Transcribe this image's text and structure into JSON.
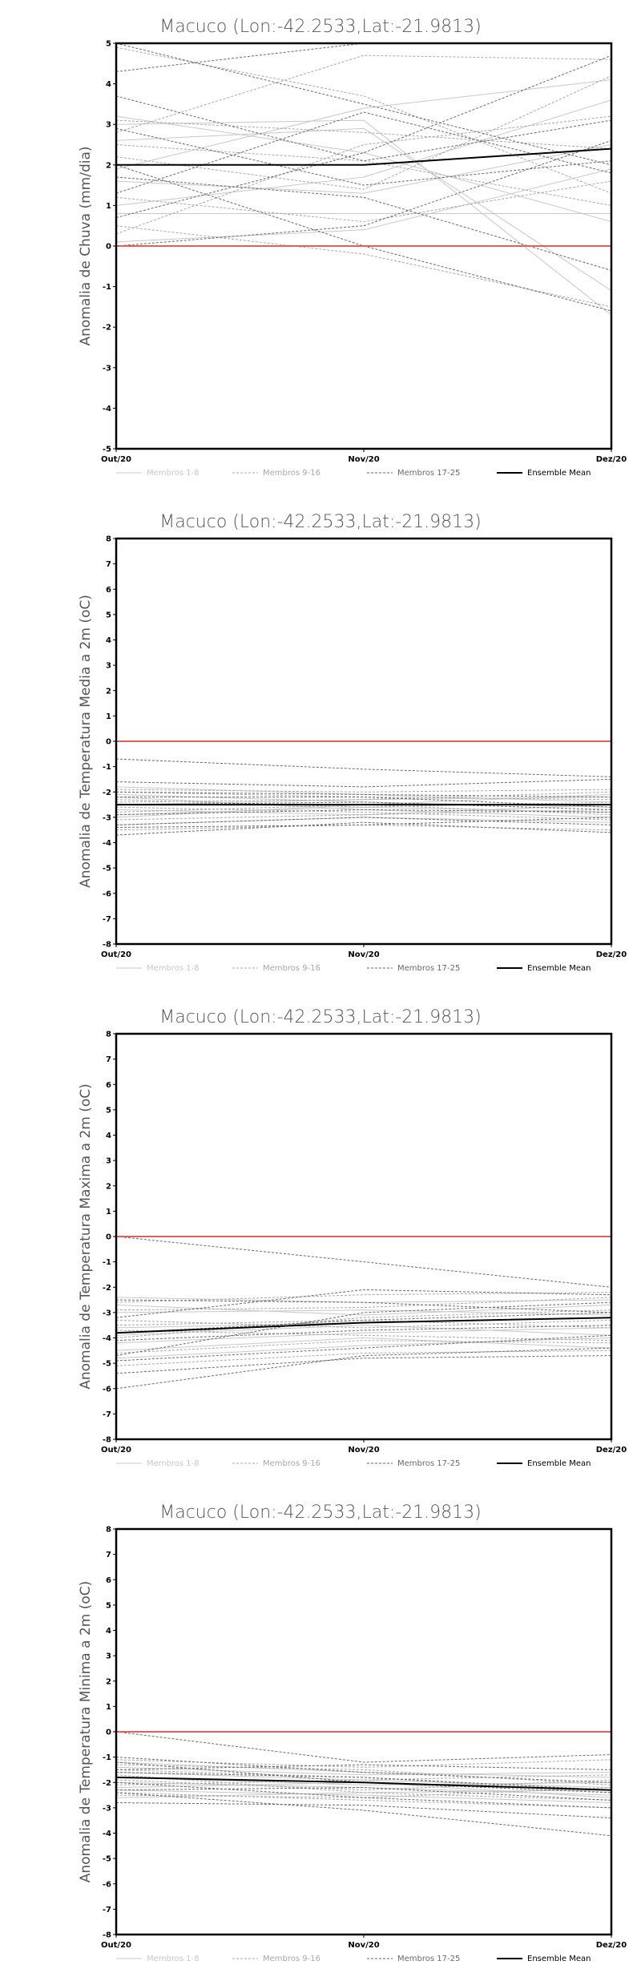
{
  "chart_data": [
    {
      "type": "line",
      "title": "Macuco (Lon:-42.2533,Lat:-21.9813)",
      "ylabel": "Anomalia de Chuva (mm/dia)",
      "xlabel": "",
      "categories": [
        "Out/20",
        "Nov/20",
        "Dez/20"
      ],
      "ylim": [
        -5,
        5
      ],
      "yticks": [
        -5,
        -4,
        -3,
        -2,
        -1,
        0,
        1,
        2,
        3,
        4,
        5
      ],
      "grid": false,
      "reference_line": 0,
      "legend": [
        "Membros 1-8",
        "Membros 9-16",
        "Membros 17-25",
        "Ensemble Mean"
      ],
      "legend_placement": "bottom",
      "series": [
        {
          "group": 0,
          "values": [
            3.2,
            2.3,
            0.6
          ]
        },
        {
          "group": 0,
          "values": [
            1.9,
            3.4,
            4.1
          ]
        },
        {
          "group": 0,
          "values": [
            0.1,
            0.4,
            1.9
          ]
        },
        {
          "group": 0,
          "values": [
            2.6,
            2.9,
            -1.1
          ]
        },
        {
          "group": 0,
          "values": [
            1.0,
            1.7,
            3.6
          ]
        },
        {
          "group": 0,
          "values": [
            3.0,
            3.1,
            -1.7
          ]
        },
        {
          "group": 0,
          "values": [
            0.8,
            0.8,
            0.8
          ]
        },
        {
          "group": 0,
          "values": [
            1.6,
            1.3,
            2.5
          ]
        },
        {
          "group": 1,
          "values": [
            2.8,
            4.7,
            4.6
          ]
        },
        {
          "group": 1,
          "values": [
            1.2,
            0.6,
            1.6
          ]
        },
        {
          "group": 1,
          "values": [
            0.3,
            2.5,
            3.2
          ]
        },
        {
          "group": 1,
          "values": [
            3.1,
            2.8,
            2.4
          ]
        },
        {
          "group": 1,
          "values": [
            2.2,
            1.4,
            4.2
          ]
        },
        {
          "group": 1,
          "values": [
            4.9,
            3.7,
            1.3
          ]
        },
        {
          "group": 1,
          "values": [
            0.5,
            -0.2,
            -1.5
          ]
        },
        {
          "group": 1,
          "values": [
            2.5,
            2.1,
            1.0
          ]
        },
        {
          "group": 2,
          "values": [
            5.0,
            3.5,
            2.0
          ]
        },
        {
          "group": 2,
          "values": [
            3.7,
            2.1,
            3.1
          ]
        },
        {
          "group": 2,
          "values": [
            1.7,
            1.2,
            -0.6
          ]
        },
        {
          "group": 2,
          "values": [
            0.0,
            0.5,
            2.6
          ]
        },
        {
          "group": 2,
          "values": [
            2.9,
            1.5,
            2.1
          ]
        },
        {
          "group": 2,
          "values": [
            0.7,
            2.3,
            4.7
          ]
        },
        {
          "group": 2,
          "values": [
            4.3,
            5.0,
            5.0
          ]
        },
        {
          "group": 2,
          "values": [
            2.0,
            0.0,
            -1.6
          ]
        },
        {
          "group": 2,
          "values": [
            1.3,
            3.3,
            1.8
          ]
        },
        {
          "group": 3,
          "values": [
            2.0,
            2.0,
            2.4
          ]
        }
      ]
    },
    {
      "type": "line",
      "title": "Macuco (Lon:-42.2533,Lat:-21.9813)",
      "ylabel": "Anomalia de Temperatura Media a 2m (oC)",
      "xlabel": "",
      "categories": [
        "Out/20",
        "Nov/20",
        "Dez/20"
      ],
      "ylim": [
        -8,
        8
      ],
      "yticks": [
        -8,
        -7,
        -6,
        -5,
        -4,
        -3,
        -2,
        -1,
        0,
        1,
        2,
        3,
        4,
        5,
        6,
        7,
        8
      ],
      "grid": false,
      "reference_line": 0,
      "legend": [
        "Membros 1-8",
        "Membros 9-16",
        "Membros 17-25",
        "Ensemble Mean"
      ],
      "legend_placement": "bottom",
      "series": [
        {
          "group": 0,
          "values": [
            -2.1,
            -2.4,
            -2.6
          ]
        },
        {
          "group": 0,
          "values": [
            -2.5,
            -2.3,
            -2.2
          ]
        },
        {
          "group": 0,
          "values": [
            -1.8,
            -2.1,
            -2.4
          ]
        },
        {
          "group": 0,
          "values": [
            -2.9,
            -2.6,
            -2.8
          ]
        },
        {
          "group": 0,
          "values": [
            -3.3,
            -3.0,
            -3.2
          ]
        },
        {
          "group": 0,
          "values": [
            -2.2,
            -2.7,
            -3.0
          ]
        },
        {
          "group": 0,
          "values": [
            -2.7,
            -2.9,
            -2.5
          ]
        },
        {
          "group": 0,
          "values": [
            -3.0,
            -2.5,
            -2.1
          ]
        },
        {
          "group": 1,
          "values": [
            -2.0,
            -2.2,
            -2.3
          ]
        },
        {
          "group": 1,
          "values": [
            -2.6,
            -2.8,
            -3.1
          ]
        },
        {
          "group": 1,
          "values": [
            -3.1,
            -2.9,
            -2.7
          ]
        },
        {
          "group": 1,
          "values": [
            -2.4,
            -2.3,
            -2.0
          ]
        },
        {
          "group": 1,
          "values": [
            -3.5,
            -3.3,
            -3.5
          ]
        },
        {
          "group": 1,
          "values": [
            -1.9,
            -2.0,
            -1.9
          ]
        },
        {
          "group": 1,
          "values": [
            -2.8,
            -2.5,
            -2.9
          ]
        },
        {
          "group": 1,
          "values": [
            -2.3,
            -2.6,
            -2.4
          ]
        },
        {
          "group": 2,
          "values": [
            -0.7,
            -1.1,
            -1.4
          ]
        },
        {
          "group": 2,
          "values": [
            -3.7,
            -3.2,
            -3.6
          ]
        },
        {
          "group": 2,
          "values": [
            -1.6,
            -1.8,
            -1.5
          ]
        },
        {
          "group": 2,
          "values": [
            -3.3,
            -3.0,
            -3.3
          ]
        },
        {
          "group": 2,
          "values": [
            -2.2,
            -2.2,
            -2.6
          ]
        },
        {
          "group": 2,
          "values": [
            -2.9,
            -2.7,
            -2.8
          ]
        },
        {
          "group": 2,
          "values": [
            -2.5,
            -2.4,
            -2.7
          ]
        },
        {
          "group": 2,
          "values": [
            -3.4,
            -3.3,
            -3.0
          ]
        },
        {
          "group": 2,
          "values": [
            -2.0,
            -2.1,
            -2.2
          ]
        },
        {
          "group": 3,
          "values": [
            -2.5,
            -2.5,
            -2.5
          ]
        }
      ]
    },
    {
      "type": "line",
      "title": "Macuco (Lon:-42.2533,Lat:-21.9813)",
      "ylabel": "Anomalia de Temperatura Maxima a 2m (oC)",
      "xlabel": "",
      "categories": [
        "Out/20",
        "Nov/20",
        "Dez/20"
      ],
      "ylim": [
        -8,
        8
      ],
      "yticks": [
        -8,
        -7,
        -6,
        -5,
        -4,
        -3,
        -2,
        -1,
        0,
        1,
        2,
        3,
        4,
        5,
        6,
        7,
        8
      ],
      "grid": false,
      "reference_line": 0,
      "legend": [
        "Membros 1-8",
        "Membros 9-16",
        "Membros 17-25",
        "Ensemble Mean"
      ],
      "legend_placement": "bottom",
      "series": [
        {
          "group": 0,
          "values": [
            -2.4,
            -2.6,
            -2.5
          ]
        },
        {
          "group": 0,
          "values": [
            -3.0,
            -2.9,
            -3.1
          ]
        },
        {
          "group": 0,
          "values": [
            -3.6,
            -3.4,
            -3.2
          ]
        },
        {
          "group": 0,
          "values": [
            -4.2,
            -3.8,
            -3.6
          ]
        },
        {
          "group": 0,
          "values": [
            -4.8,
            -4.3,
            -4.0
          ]
        },
        {
          "group": 0,
          "values": [
            -2.7,
            -3.1,
            -2.7
          ]
        },
        {
          "group": 0,
          "values": [
            -3.9,
            -3.5,
            -3.9
          ]
        },
        {
          "group": 0,
          "values": [
            -4.5,
            -4.0,
            -4.4
          ]
        },
        {
          "group": 1,
          "values": [
            -2.6,
            -2.3,
            -2.2
          ]
        },
        {
          "group": 1,
          "values": [
            -3.3,
            -3.6,
            -3.3
          ]
        },
        {
          "group": 1,
          "values": [
            -4.0,
            -3.2,
            -2.9
          ]
        },
        {
          "group": 1,
          "values": [
            -4.6,
            -4.1,
            -4.2
          ]
        },
        {
          "group": 1,
          "values": [
            -3.5,
            -3.3,
            -3.6
          ]
        },
        {
          "group": 1,
          "values": [
            -5.1,
            -4.6,
            -4.5
          ]
        },
        {
          "group": 1,
          "values": [
            -2.9,
            -2.8,
            -2.4
          ]
        },
        {
          "group": 1,
          "values": [
            -3.7,
            -3.9,
            -4.1
          ]
        },
        {
          "group": 2,
          "values": [
            0.0,
            -1.0,
            -2.0
          ]
        },
        {
          "group": 2,
          "values": [
            -6.0,
            -4.7,
            -4.4
          ]
        },
        {
          "group": 2,
          "values": [
            -3.2,
            -2.1,
            -2.3
          ]
        },
        {
          "group": 2,
          "values": [
            -4.7,
            -3.0,
            -2.6
          ]
        },
        {
          "group": 2,
          "values": [
            -5.4,
            -4.8,
            -4.7
          ]
        },
        {
          "group": 2,
          "values": [
            -2.5,
            -2.6,
            -3.0
          ]
        },
        {
          "group": 2,
          "values": [
            -4.9,
            -4.4,
            -3.9
          ]
        },
        {
          "group": 2,
          "values": [
            -3.8,
            -3.3,
            -3.0
          ]
        },
        {
          "group": 2,
          "values": [
            -4.1,
            -3.7,
            -3.5
          ]
        },
        {
          "group": 3,
          "values": [
            -3.8,
            -3.4,
            -3.2
          ]
        }
      ]
    },
    {
      "type": "line",
      "title": "Macuco (Lon:-42.2533,Lat:-21.9813)",
      "ylabel": "Anomalia de Temperatura Minima a 2m (oC)",
      "xlabel": "",
      "categories": [
        "Out/20",
        "Nov/20",
        "Dez/20"
      ],
      "ylim": [
        -8,
        8
      ],
      "yticks": [
        -8,
        -7,
        -6,
        -5,
        -4,
        -3,
        -2,
        -1,
        0,
        1,
        2,
        3,
        4,
        5,
        6,
        7,
        8
      ],
      "grid": false,
      "reference_line": 0,
      "legend": [
        "Membros 1-8",
        "Membros 9-16",
        "Membros 17-25",
        "Ensemble Mean"
      ],
      "legend_placement": "bottom",
      "series": [
        {
          "group": 0,
          "values": [
            -1.2,
            -1.6,
            -1.8
          ]
        },
        {
          "group": 0,
          "values": [
            -1.6,
            -1.9,
            -2.2
          ]
        },
        {
          "group": 0,
          "values": [
            -2.0,
            -2.2,
            -2.5
          ]
        },
        {
          "group": 0,
          "values": [
            -2.3,
            -2.5,
            -2.8
          ]
        },
        {
          "group": 0,
          "values": [
            -1.4,
            -1.7,
            -1.6
          ]
        },
        {
          "group": 0,
          "values": [
            -2.6,
            -2.4,
            -2.3
          ]
        },
        {
          "group": 0,
          "values": [
            -1.8,
            -2.1,
            -2.0
          ]
        },
        {
          "group": 0,
          "values": [
            -2.2,
            -2.0,
            -2.6
          ]
        },
        {
          "group": 1,
          "values": [
            -1.1,
            -1.4,
            -1.1
          ]
        },
        {
          "group": 1,
          "values": [
            -1.5,
            -1.8,
            -2.4
          ]
        },
        {
          "group": 1,
          "values": [
            -1.9,
            -2.3,
            -1.9
          ]
        },
        {
          "group": 1,
          "values": [
            -2.4,
            -2.7,
            -3.0
          ]
        },
        {
          "group": 1,
          "values": [
            -1.3,
            -1.5,
            -2.1
          ]
        },
        {
          "group": 1,
          "values": [
            -2.1,
            -1.9,
            -1.7
          ]
        },
        {
          "group": 1,
          "values": [
            -1.7,
            -2.4,
            -2.7
          ]
        },
        {
          "group": 1,
          "values": [
            -2.5,
            -2.6,
            -2.2
          ]
        },
        {
          "group": 2,
          "values": [
            0.0,
            -1.2,
            -0.9
          ]
        },
        {
          "group": 2,
          "values": [
            -2.4,
            -3.1,
            -4.1
          ]
        },
        {
          "group": 2,
          "values": [
            -1.0,
            -1.6,
            -2.0
          ]
        },
        {
          "group": 2,
          "values": [
            -2.8,
            -2.9,
            -3.4
          ]
        },
        {
          "group": 2,
          "values": [
            -1.5,
            -1.3,
            -1.5
          ]
        },
        {
          "group": 2,
          "values": [
            -2.0,
            -2.6,
            -3.0
          ]
        },
        {
          "group": 2,
          "values": [
            -1.2,
            -2.0,
            -2.4
          ]
        },
        {
          "group": 2,
          "values": [
            -2.3,
            -2.2,
            -2.7
          ]
        },
        {
          "group": 2,
          "values": [
            -1.6,
            -1.8,
            -2.3
          ]
        },
        {
          "group": 3,
          "values": [
            -1.8,
            -2.0,
            -2.3
          ]
        }
      ]
    }
  ],
  "styles": {
    "axis_color": "#000000",
    "reference_color": "#e06060",
    "groups": [
      {
        "color": "#c8c8c8",
        "dash": "",
        "width": 1
      },
      {
        "color": "#a8a8a8",
        "dash": "3,2",
        "width": 1
      },
      {
        "color": "#6a6a6a",
        "dash": "3,2",
        "width": 1
      },
      {
        "color": "#000000",
        "dash": "",
        "width": 2
      }
    ]
  }
}
